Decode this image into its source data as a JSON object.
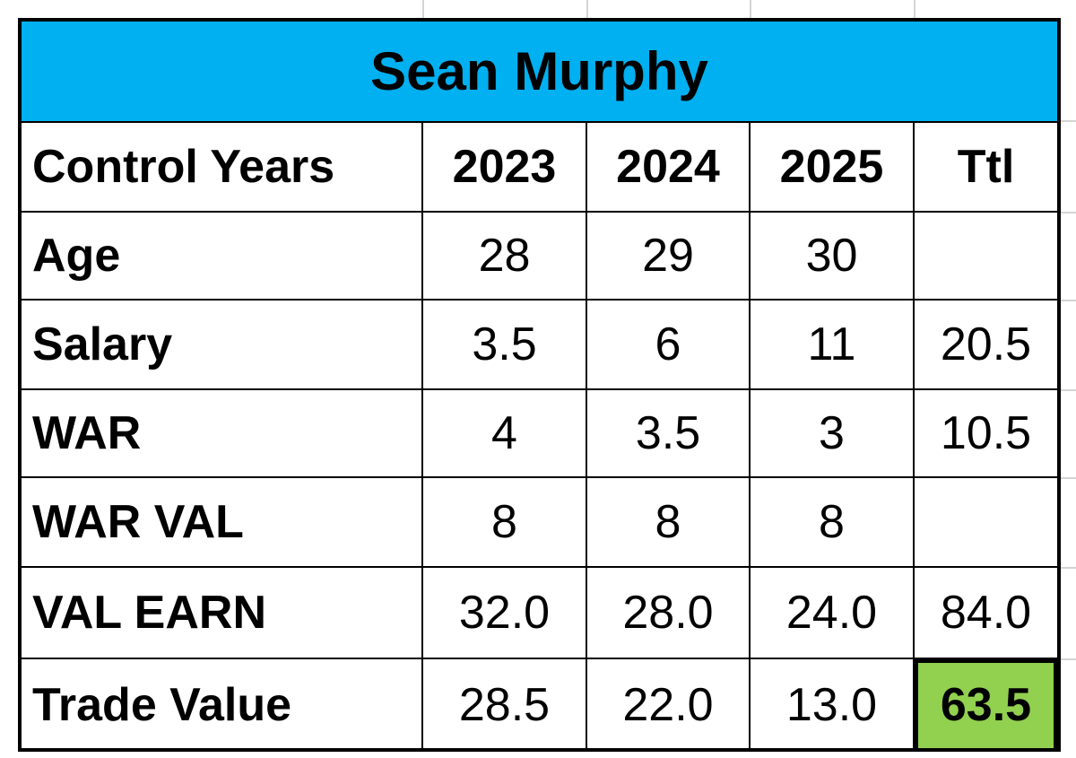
{
  "title": "Sean Murphy",
  "table": {
    "header": [
      "Control Years",
      "2023",
      "2024",
      "2025",
      "Ttl"
    ],
    "rows": [
      [
        "Age",
        "28",
        "29",
        "30",
        null
      ],
      [
        "Salary",
        "3.5",
        "6",
        "11",
        "20.5"
      ],
      [
        "WAR",
        "4",
        "3.5",
        "3",
        "10.5"
      ],
      [
        "WAR VAL",
        "8",
        "8",
        "8",
        null
      ],
      [
        "VAL EARN",
        "32.0",
        "28.0",
        "24.0",
        "84.0"
      ],
      [
        "Trade Value",
        "28.5",
        "22.0",
        "13.0",
        "63.5"
      ]
    ]
  }
}
